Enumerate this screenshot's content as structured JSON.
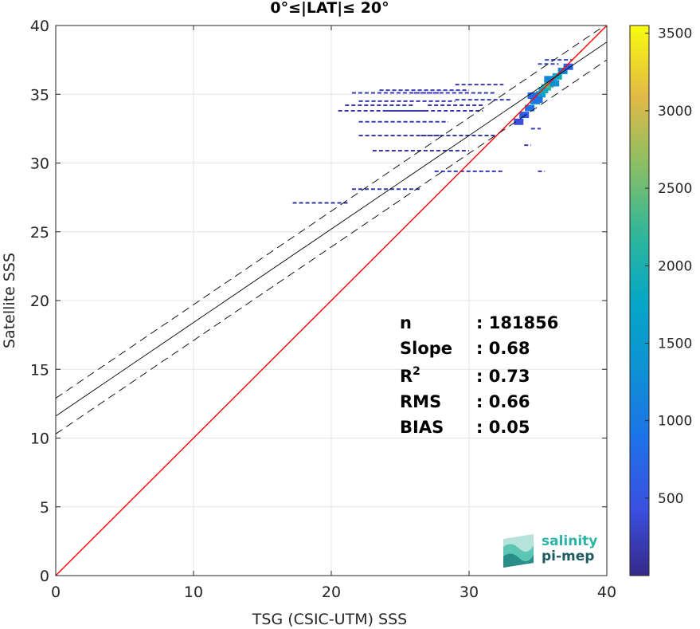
{
  "chart_data": {
    "type": "heatmap",
    "title": "0°≤|LAT|≤ 20°",
    "xlabel": "TSG (CSIC-UTM) SSS",
    "ylabel": "Satellite SSS",
    "xlim": [
      0,
      40
    ],
    "ylim": [
      0,
      40
    ],
    "xticks": [
      0,
      10,
      20,
      30,
      40
    ],
    "yticks": [
      0,
      5,
      10,
      15,
      20,
      25,
      30,
      35,
      40
    ],
    "grid": true,
    "colorbar": {
      "range": [
        0,
        3550
      ],
      "ticks": [
        500,
        1000,
        1500,
        2000,
        2500,
        3000,
        3500
      ],
      "colormap": "parula"
    },
    "lines": [
      {
        "label": "1:1",
        "color": "#ff0000",
        "style": "solid",
        "intercept": 0,
        "slope": 1
      },
      {
        "label": "fit",
        "color": "#000000",
        "style": "solid",
        "intercept": 11.6,
        "slope": 0.68
      },
      {
        "label": "fit-upper",
        "color": "#000000",
        "style": "dashed",
        "intercept": 12.9,
        "slope": 0.68
      },
      {
        "label": "fit-lower",
        "color": "#000000",
        "style": "dashed",
        "intercept": 10.3,
        "slope": 0.68
      }
    ],
    "stats": [
      {
        "label": "n",
        "value": ": 181856"
      },
      {
        "label": "Slope",
        "value": ": 0.68"
      },
      {
        "label": "R",
        "sup": "2",
        "value": ": 0.73"
      },
      {
        "label": "RMS",
        "value": ": 0.66"
      },
      {
        "label": "BIAS",
        "value": ": 0.05"
      }
    ],
    "density_segments": [
      [
        17.2,
        21.2,
        27.1,
        120
      ],
      [
        21.5,
        26.5,
        28.1,
        160
      ],
      [
        27.5,
        32.5,
        29.4,
        180
      ],
      [
        34.5,
        35.2,
        32.5,
        220
      ],
      [
        34.0,
        34.5,
        31.3,
        200
      ],
      [
        35.0,
        35.5,
        29.4,
        200
      ],
      [
        23.0,
        30.0,
        30.9,
        150
      ],
      [
        22.0,
        28.0,
        32.0,
        170
      ],
      [
        26.5,
        32.0,
        32.0,
        160
      ],
      [
        22.0,
        28.5,
        33.0,
        170
      ],
      [
        20.5,
        27.0,
        33.8,
        160
      ],
      [
        24.0,
        31.0,
        33.8,
        170
      ],
      [
        21.0,
        26.0,
        34.2,
        180
      ],
      [
        27.0,
        31.0,
        34.2,
        190
      ],
      [
        22.0,
        29.0,
        34.5,
        180
      ],
      [
        29.0,
        33.0,
        34.6,
        190
      ],
      [
        21.5,
        28.0,
        35.1,
        210
      ],
      [
        26.0,
        32.0,
        35.1,
        200
      ],
      [
        23.5,
        30.0,
        35.3,
        200
      ],
      [
        29.0,
        32.5,
        35.7,
        220
      ],
      [
        35.0,
        36.5,
        37.2,
        260
      ],
      [
        35.5,
        37.5,
        37.5,
        300
      ]
    ],
    "density_core": [
      [
        33.6,
        33.0,
        400
      ],
      [
        34.0,
        33.5,
        600
      ],
      [
        34.4,
        34.0,
        900
      ],
      [
        34.8,
        34.5,
        1200
      ],
      [
        35.2,
        35.0,
        1600
      ],
      [
        35.6,
        35.5,
        2000
      ],
      [
        36.0,
        35.9,
        2300
      ],
      [
        36.4,
        36.3,
        1800
      ],
      [
        36.8,
        36.7,
        1200
      ],
      [
        37.2,
        37.0,
        700
      ],
      [
        35.4,
        35.3,
        1900
      ],
      [
        35.8,
        35.7,
        2400
      ],
      [
        34.6,
        34.9,
        800
      ],
      [
        35.0,
        34.6,
        900
      ],
      [
        35.8,
        36.1,
        1200
      ],
      [
        36.2,
        35.8,
        1300
      ]
    ]
  },
  "logo": {
    "line1": "salinity",
    "line2": "pi-mep"
  }
}
